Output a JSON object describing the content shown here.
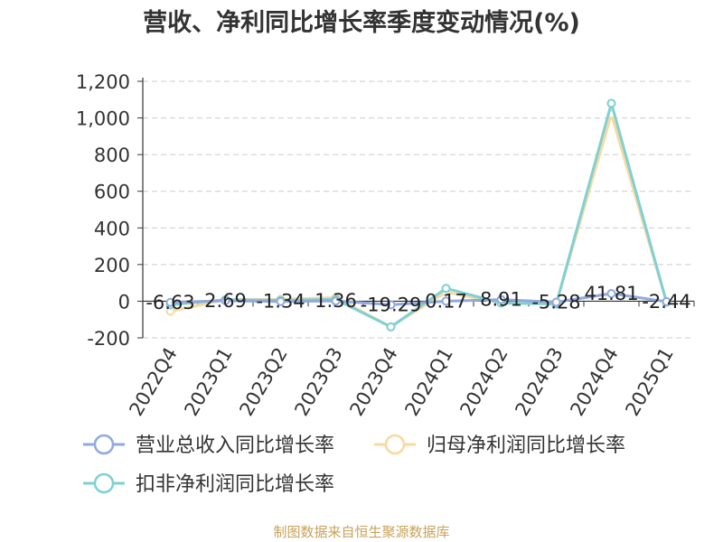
{
  "chart_data": {
    "type": "line",
    "title": "营收、净利同比增长率季度变动情况(%)",
    "categories": [
      "2022Q4",
      "2023Q1",
      "2023Q2",
      "2023Q3",
      "2023Q4",
      "2024Q1",
      "2024Q2",
      "2024Q3",
      "2024Q4",
      "2025Q1"
    ],
    "ylim": [
      -200,
      1200
    ],
    "yticks": [
      -200,
      0,
      200,
      400,
      600,
      800,
      "1,000",
      "1,200"
    ],
    "grid": true,
    "legend_position": "bottom",
    "series": [
      {
        "name": "营业总收入同比增长率",
        "color": "#8faadc",
        "values": [
          -6.63,
          2.69,
          -1.34,
          1.36,
          -19.29,
          0.17,
          8.91,
          -5.28,
          41.81,
          -2.44
        ],
        "labels": [
          "-6.63",
          "2.69",
          "-1.34",
          "1.36",
          "-19.29",
          "0.17",
          "8.91",
          "-5.28",
          "41.81",
          "-2.44"
        ]
      },
      {
        "name": "归母净利润同比增长率",
        "color": "#f8d9a0",
        "values": [
          -55,
          8,
          10,
          20,
          -140,
          50,
          -10,
          -15,
          1020,
          -5
        ]
      },
      {
        "name": "扣非净利润同比增长率",
        "color": "#7fd0d4",
        "values": [
          -20,
          8,
          5,
          10,
          -140,
          70,
          -10,
          -15,
          1080,
          -5
        ]
      }
    ]
  },
  "source_text": "制图数据来自恒生聚源数据库"
}
